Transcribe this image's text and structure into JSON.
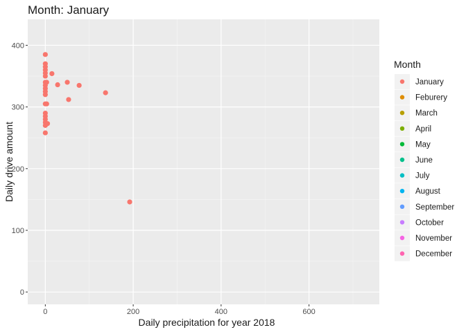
{
  "chart_data": {
    "type": "scatter",
    "title": "Month: January",
    "xlabel": "Daily precipitation for year 2018",
    "ylabel": "Daily drive amount",
    "xlim": [
      -40,
      760
    ],
    "ylim": [
      -20,
      442
    ],
    "x_ticks": [
      0,
      200,
      400,
      600
    ],
    "y_ticks": [
      0,
      100,
      200,
      300,
      400
    ],
    "grid": true,
    "legend_position": "right",
    "legend_title": "Month",
    "legend": [
      {
        "label": "January",
        "color": "#F8766D"
      },
      {
        "label": "Feburery",
        "color": "#DE8C00"
      },
      {
        "label": "March",
        "color": "#B79F00"
      },
      {
        "label": "April",
        "color": "#7CAE00"
      },
      {
        "label": "May",
        "color": "#00BA38"
      },
      {
        "label": "June",
        "color": "#00C08B"
      },
      {
        "label": "July",
        "color": "#00BFC4"
      },
      {
        "label": "August",
        "color": "#00B4F0"
      },
      {
        "label": "September",
        "color": "#619CFF"
      },
      {
        "label": "October",
        "color": "#C77CFF"
      },
      {
        "label": "November",
        "color": "#F564E3"
      },
      {
        "label": "December",
        "color": "#FF64B0"
      }
    ],
    "series": [
      {
        "name": "January",
        "color": "#F8766D",
        "points": [
          [
            0,
            385
          ],
          [
            0,
            370
          ],
          [
            0,
            365
          ],
          [
            0,
            360
          ],
          [
            0,
            355
          ],
          [
            0,
            350
          ],
          [
            0,
            340
          ],
          [
            0,
            335
          ],
          [
            0,
            330
          ],
          [
            0,
            325
          ],
          [
            0,
            320
          ],
          [
            0,
            305
          ],
          [
            0,
            290
          ],
          [
            0,
            285
          ],
          [
            0,
            280
          ],
          [
            0,
            275
          ],
          [
            0,
            270
          ],
          [
            0,
            258
          ],
          [
            3,
            305
          ],
          [
            3,
            340
          ],
          [
            5,
            273
          ],
          [
            15,
            354
          ],
          [
            28,
            336
          ],
          [
            50,
            340
          ],
          [
            53,
            312
          ],
          [
            77,
            335
          ],
          [
            137,
            323
          ],
          [
            192,
            146
          ]
        ]
      }
    ]
  }
}
